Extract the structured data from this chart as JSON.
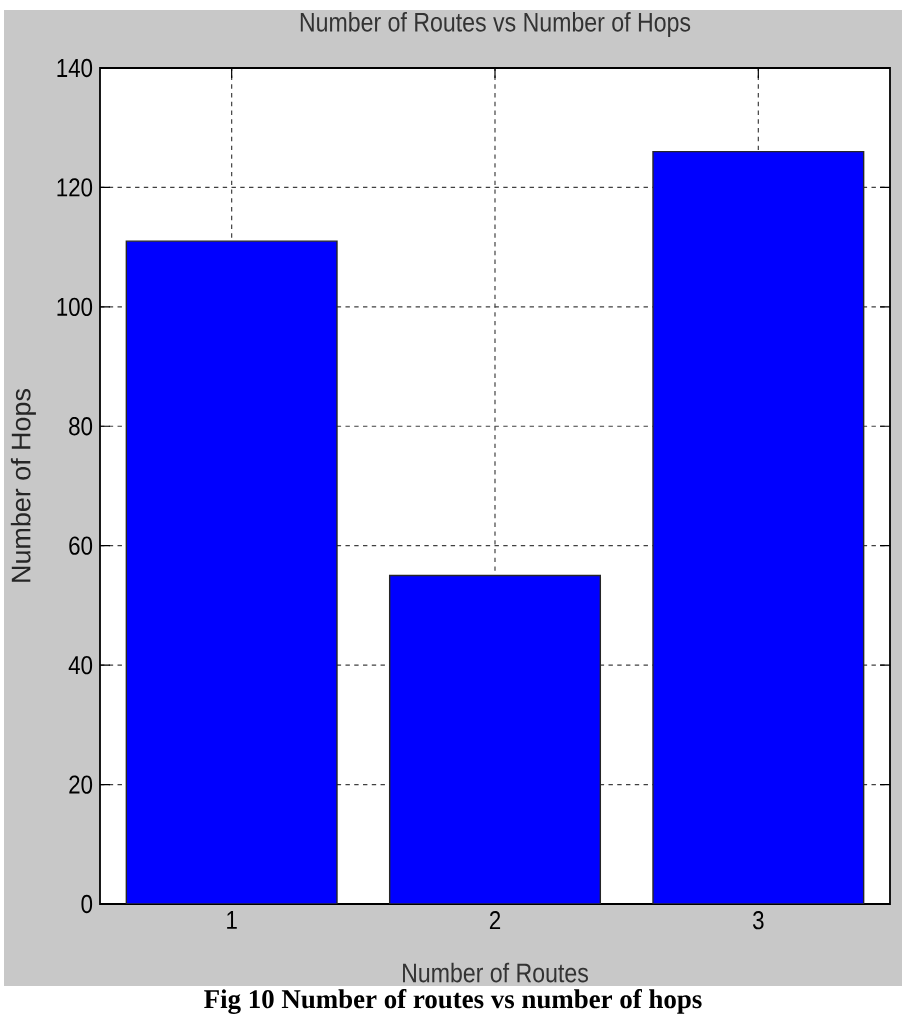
{
  "chart_data": {
    "type": "bar",
    "title": "Number of Routes vs Number of Hops",
    "xlabel": "Number of Routes",
    "ylabel": "Number of Hops",
    "categories": [
      "1",
      "2",
      "3"
    ],
    "values": [
      111,
      55,
      126
    ],
    "color": "#0000ff",
    "ylim": [
      0,
      140
    ],
    "yticks": [
      0,
      20,
      40,
      60,
      80,
      100,
      120,
      140
    ],
    "grid": true,
    "annotations": [
      "Fig 10 Number of routes vs number of hops"
    ]
  }
}
